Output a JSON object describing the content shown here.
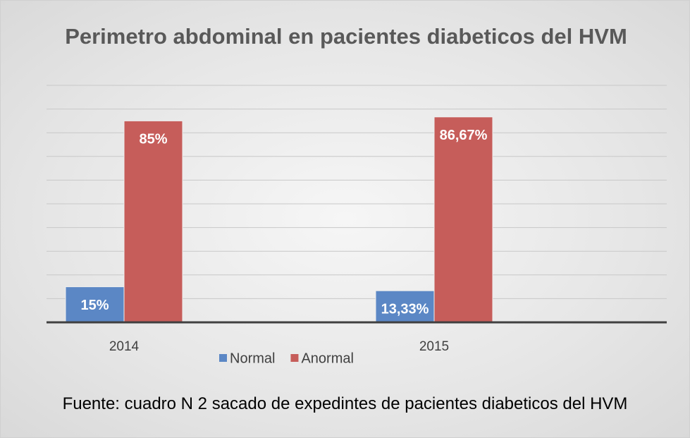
{
  "chart_data": {
    "type": "bar",
    "title": "Perimetro abdominal en pacientes diabeticos del HVM",
    "categories": [
      "2014",
      "2015"
    ],
    "series": [
      {
        "name": "Normal",
        "color": "#5b87c5",
        "values": [
          15,
          13.33
        ],
        "value_labels": [
          "15%",
          "13,33%"
        ]
      },
      {
        "name": "Anormal",
        "color": "#c65d5a",
        "values": [
          85,
          86.67
        ],
        "value_labels": [
          "85%",
          "86,67%"
        ]
      }
    ],
    "ylim": [
      0,
      100
    ],
    "yticks": [
      0,
      10,
      20,
      30,
      40,
      50,
      60,
      70,
      80,
      90,
      100
    ],
    "grid": true,
    "legend": "bottom",
    "source": "Fuente: cuadro N 2 sacado de expedintes de pacientes diabeticos del HVM"
  }
}
